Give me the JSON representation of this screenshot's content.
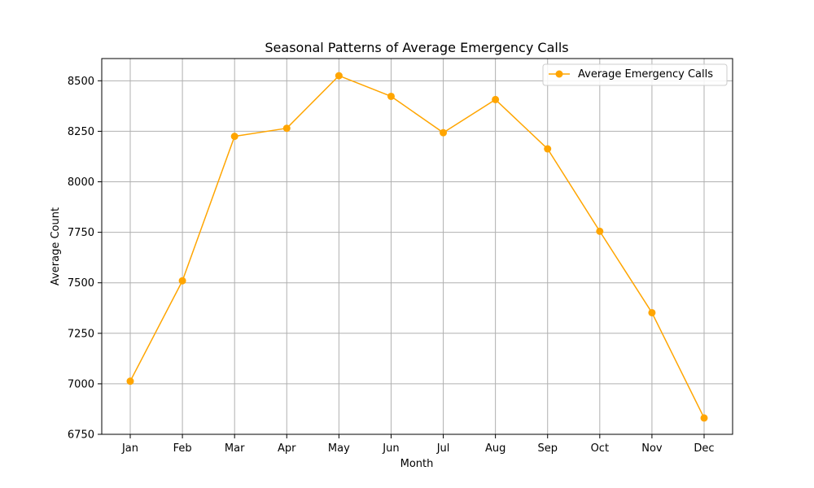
{
  "chart_data": {
    "type": "line",
    "title": "Seasonal Patterns of Average Emergency Calls",
    "xlabel": "Month",
    "ylabel": "Average Count",
    "categories": [
      "Jan",
      "Feb",
      "Mar",
      "Apr",
      "May",
      "Jun",
      "Jul",
      "Aug",
      "Sep",
      "Oct",
      "Nov",
      "Dec"
    ],
    "series": [
      {
        "name": "Average Emergency Calls",
        "color": "#ffa500",
        "marker": "circle",
        "values": [
          7013,
          7510,
          8225,
          8265,
          8525,
          8423,
          8243,
          8407,
          8163,
          7755,
          7352,
          6831
        ]
      }
    ],
    "ylim": [
      6750,
      8610
    ],
    "yticks": [
      6750,
      7000,
      7250,
      7500,
      7750,
      8000,
      8250,
      8500
    ],
    "ytick_labels": [
      "6750",
      "7000",
      "7250",
      "7500",
      "7750",
      "8000",
      "8250",
      "8500"
    ],
    "grid": true,
    "legend": "top-right"
  }
}
